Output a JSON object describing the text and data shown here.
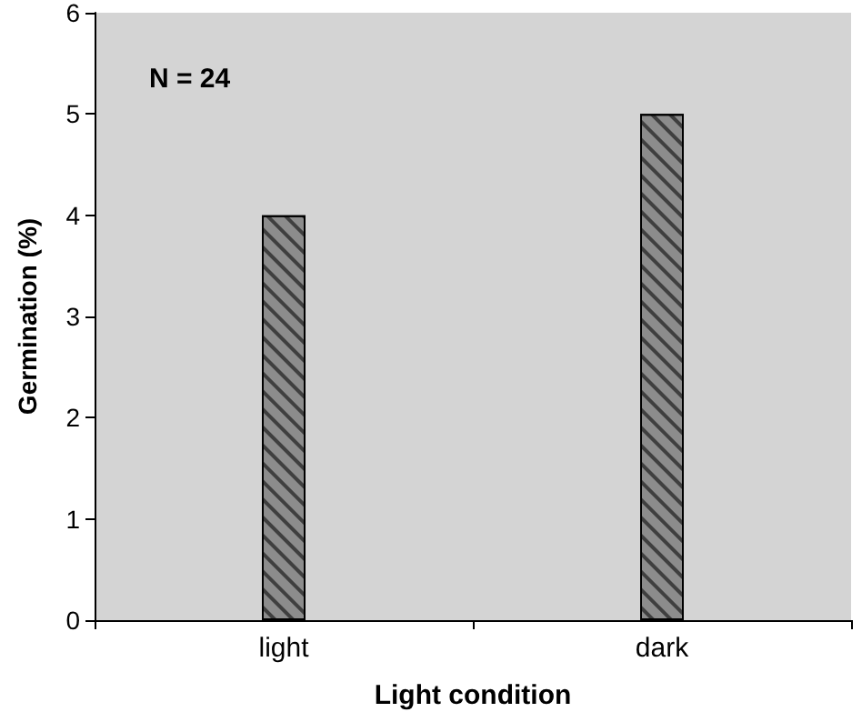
{
  "chart_data": {
    "type": "bar",
    "xlabel": "Light condition",
    "ylabel": "Germination (%)",
    "categories": [
      "light",
      "dark"
    ],
    "values": [
      4,
      5
    ],
    "color": "#8c8c8c",
    "ylim": [
      0,
      6
    ],
    "yticks": [
      0,
      1,
      2,
      3,
      4,
      5,
      6
    ],
    "grid": false,
    "annotations": [
      "N = 24"
    ]
  }
}
